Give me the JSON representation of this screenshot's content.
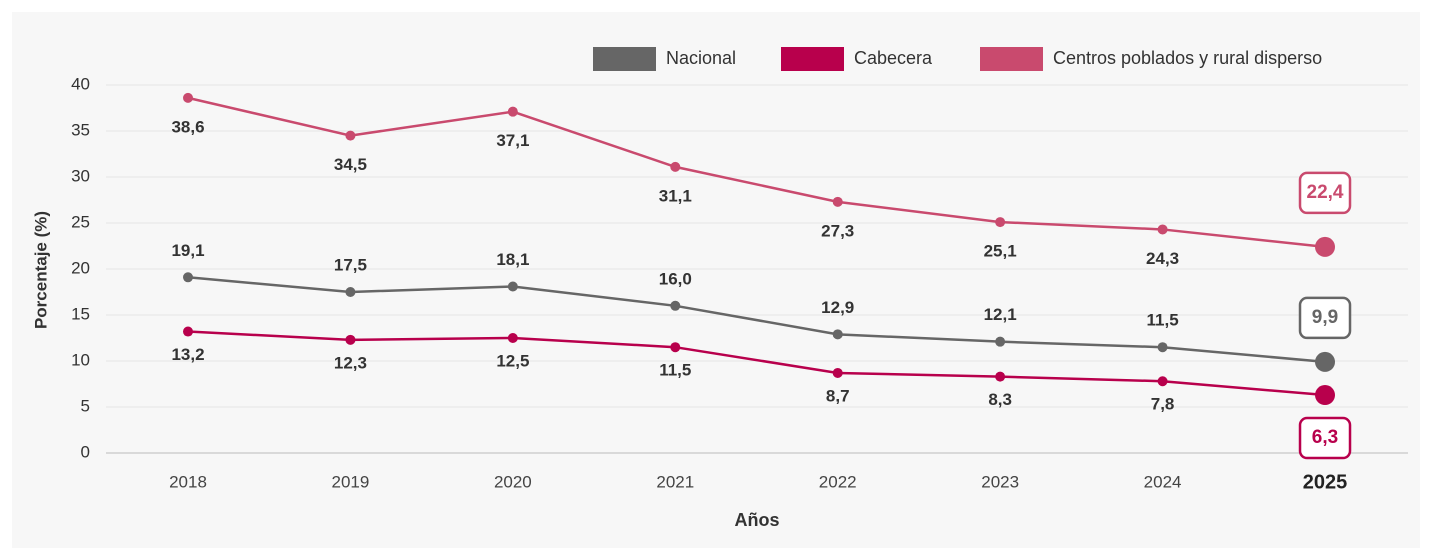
{
  "chart_data": {
    "type": "line",
    "categories": [
      "2018",
      "2019",
      "2020",
      "2021",
      "2022",
      "2023",
      "2024",
      "2025"
    ],
    "series": [
      {
        "name": "Nacional",
        "color": "#666666",
        "values": [
          19.1,
          17.5,
          18.1,
          16.0,
          12.9,
          12.1,
          11.5,
          9.9
        ],
        "value_labels": [
          "19,1",
          "17,5",
          "18,1",
          "16,0",
          "12,9",
          "12,1",
          "11,5",
          "9,9"
        ]
      },
      {
        "name": "Cabecera",
        "color": "#b8004c",
        "values": [
          13.2,
          12.3,
          12.5,
          11.5,
          8.7,
          8.3,
          7.8,
          6.3
        ],
        "value_labels": [
          "13,2",
          "12,3",
          "12,5",
          "11,5",
          "8,7",
          "8,3",
          "7,8",
          "6,3"
        ]
      },
      {
        "name": "Centros poblados y rural disperso",
        "color": "#c94a6e",
        "values": [
          38.6,
          34.5,
          37.1,
          31.1,
          27.3,
          25.1,
          24.3,
          22.4
        ],
        "value_labels": [
          "38,6",
          "34,5",
          "37,1",
          "31,1",
          "27,3",
          "25,1",
          "24,3",
          "22,4"
        ]
      }
    ],
    "x_label": "Años",
    "y_label": "Porcentaje (%)",
    "ylim": [
      0,
      40
    ],
    "yticks": [
      0,
      5,
      10,
      15,
      20,
      25,
      30,
      35,
      40
    ],
    "grid": true,
    "legend": "top-right"
  }
}
